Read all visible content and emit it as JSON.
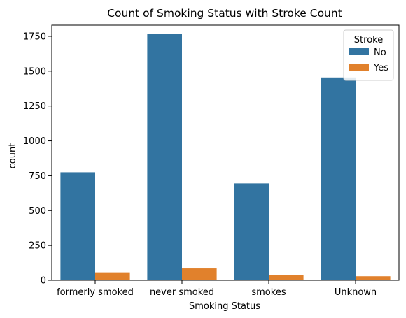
{
  "chart_data": {
    "type": "bar",
    "title": "Count of Smoking Status with Stroke Count",
    "xlabel": "Smoking Status",
    "ylabel": "count",
    "categories": [
      "formerly smoked",
      "never smoked",
      "smokes",
      "Unknown"
    ],
    "series": [
      {
        "name": "No",
        "color": "#3274a1",
        "values": [
          775,
          1765,
          695,
          1455
        ]
      },
      {
        "name": "Yes",
        "color": "#e1812c",
        "values": [
          57,
          85,
          37,
          29
        ]
      }
    ],
    "ylim": [
      0,
      1830
    ],
    "yticks": [
      0,
      250,
      500,
      750,
      1000,
      1250,
      1500,
      1750
    ],
    "grid": false,
    "legend": {
      "title": "Stroke",
      "placement": "top-right"
    }
  }
}
